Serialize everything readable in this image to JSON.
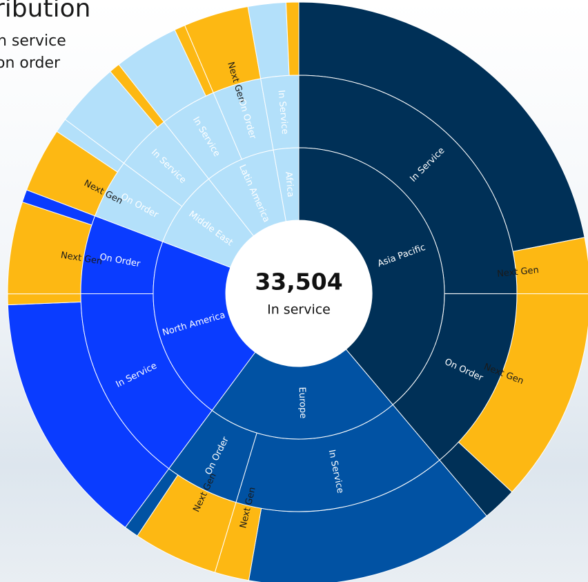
{
  "chart_data": {
    "type": "sunburst",
    "title": "ribution",
    "legend": [
      "n service",
      "on order"
    ],
    "center": {
      "value": "33,504",
      "caption": "In service"
    },
    "regions": [
      {
        "name": "Asia Pacific",
        "color": "#003057",
        "children": [
          {
            "name": "In Service",
            "children": [
              {
                "name": null,
                "value": 21.9,
                "color": "#003057"
              },
              {
                "name": "Next Gen",
                "value": 3.1,
                "color": "#fdb813"
              }
            ]
          },
          {
            "name": "On Order",
            "children": [
              {
                "name": "Next Gen",
                "value": 11.9,
                "color": "#fdb813"
              },
              {
                "name": null,
                "value": 1.9,
                "color": "#003057"
              }
            ]
          }
        ]
      },
      {
        "name": "Europe",
        "color": "#0152a3",
        "children": [
          {
            "name": "In Service",
            "children": [
              {
                "name": null,
                "value": 13.9,
                "color": "#0152a3"
              },
              {
                "name": "Next Gen",
                "value": 1.9,
                "color": "#fdb813"
              }
            ]
          },
          {
            "name": "On Order",
            "children": [
              {
                "name": "Next Gen",
                "value": 4.7,
                "color": "#fdb813"
              },
              {
                "name": null,
                "value": 0.8,
                "color": "#0152a3"
              }
            ]
          }
        ]
      },
      {
        "name": "North America",
        "color": "#0a3cff",
        "children": [
          {
            "name": "In Service",
            "children": [
              {
                "name": null,
                "value": 14.2,
                "color": "#0a3cff"
              },
              {
                "name": null,
                "value": 0.6,
                "color": "#fdb813"
              }
            ]
          },
          {
            "name": "On Order",
            "children": [
              {
                "name": "Next Gen",
                "value": 5.1,
                "color": "#fdb813"
              },
              {
                "name": null,
                "value": 0.7,
                "color": "#0a3cff"
              }
            ]
          }
        ]
      },
      {
        "name": "Middle East",
        "color": "#b3e0fa",
        "children": [
          {
            "name": "On Order",
            "children": [
              {
                "name": "Next Gen",
                "value": 3.6,
                "color": "#fdb813"
              },
              {
                "name": null,
                "value": 0.8,
                "color": "#b3e0fa"
              }
            ]
          },
          {
            "name": "In Service",
            "children": [
              {
                "name": null,
                "value": 3.6,
                "color": "#b3e0fa"
              },
              {
                "name": null,
                "value": 0.6,
                "color": "#fdb813"
              }
            ]
          }
        ]
      },
      {
        "name": "Latin America",
        "color": "#b3e0fa",
        "children": [
          {
            "name": "In Service",
            "children": [
              {
                "name": null,
                "value": 3.6,
                "color": "#b3e0fa"
              },
              {
                "name": null,
                "value": 0.6,
                "color": "#fdb813"
              }
            ]
          },
          {
            "name": "On Order",
            "children": [
              {
                "name": "Next Gen",
                "value": 3.6,
                "color": "#fdb813"
              }
            ]
          }
        ]
      },
      {
        "name": "Africa",
        "color": "#b3e0fa",
        "children": [
          {
            "name": "In Service",
            "children": [
              {
                "name": null,
                "value": 2.1,
                "color": "#b3e0fa"
              },
              {
                "name": null,
                "value": 0.7,
                "color": "#fdb813"
              }
            ]
          }
        ]
      }
    ]
  }
}
